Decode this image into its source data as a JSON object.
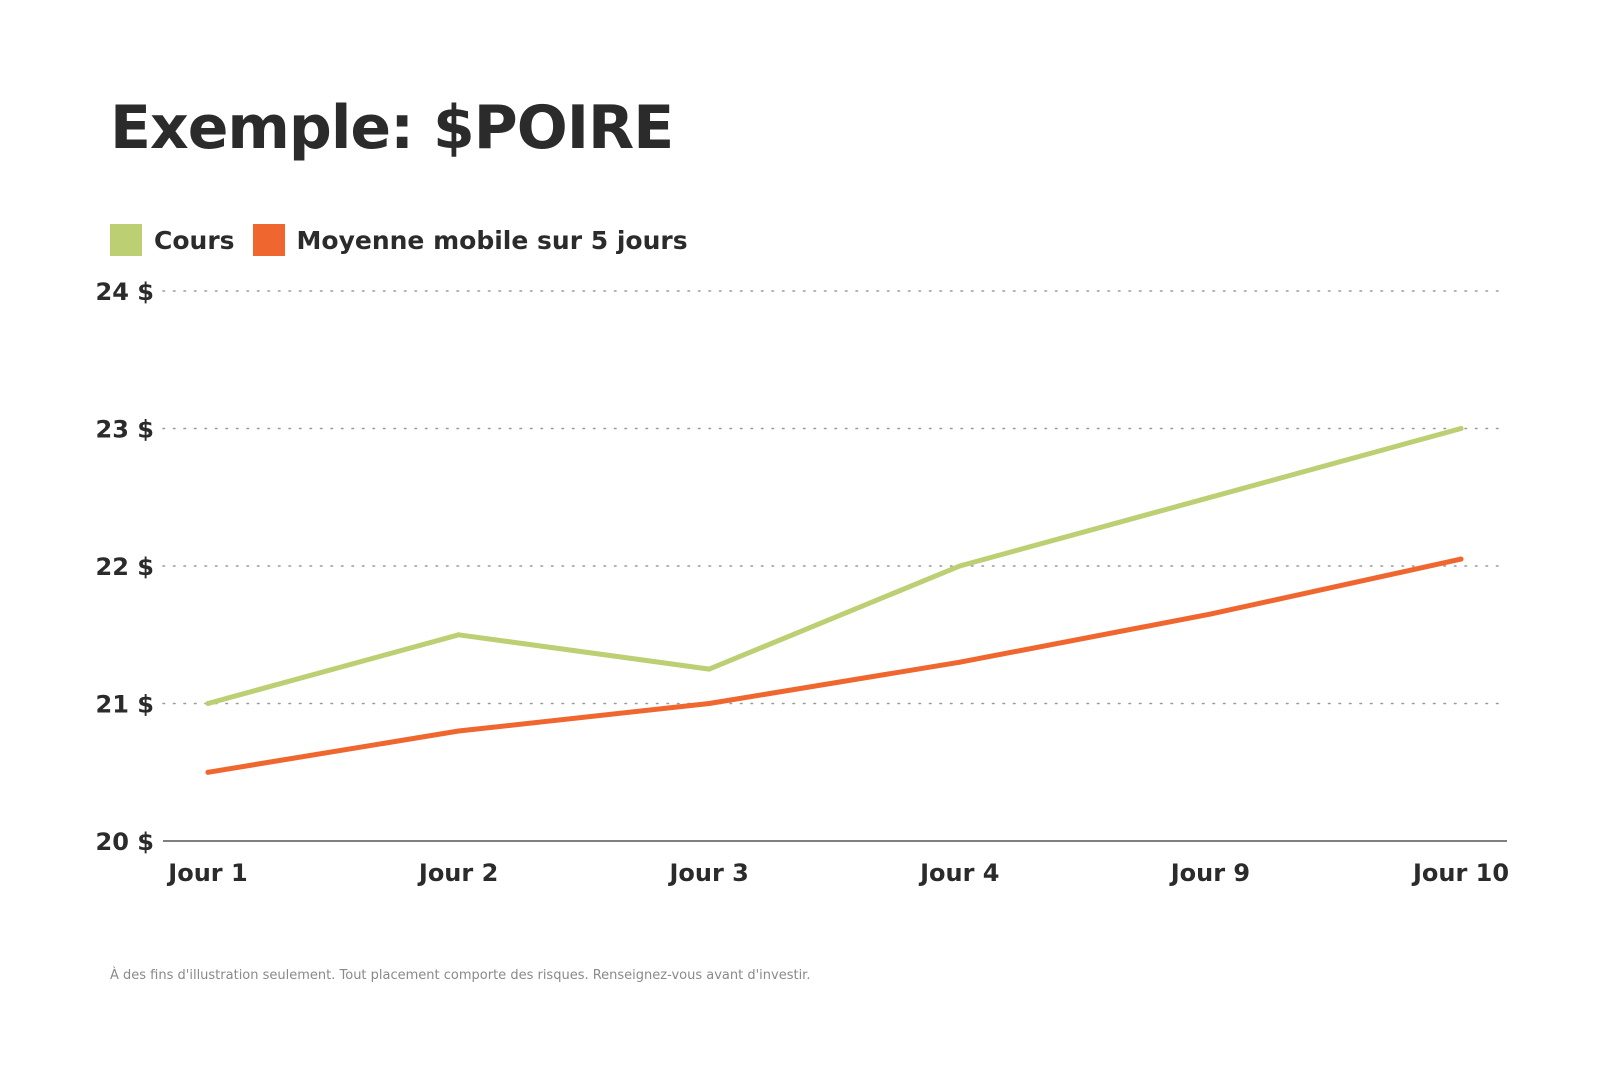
{
  "chart_data": {
    "type": "line",
    "title": "Exemple: $POIRE",
    "categories": [
      "Jour 1",
      "Jour 2",
      "Jour 3",
      "Jour 4",
      "Jour 9",
      "Jour 10"
    ],
    "series": [
      {
        "name": "Cours",
        "color": "#bccf72",
        "values": [
          21.0,
          21.5,
          21.25,
          22.0,
          22.5,
          23.0
        ]
      },
      {
        "name": "Moyenne mobile sur 5 jours",
        "color": "#f0662f",
        "values": [
          20.5,
          20.8,
          21.0,
          21.3,
          21.65,
          22.05
        ]
      }
    ],
    "yticks": [
      20,
      21,
      22,
      23,
      24
    ],
    "ytick_labels": [
      "20 $",
      "21 $",
      "22 $",
      "23 $",
      "24 $"
    ],
    "ylim": [
      20,
      24
    ],
    "xlabel": "",
    "ylabel": "",
    "grid": "horizontal dotted",
    "legend_position": "top-left"
  },
  "footnote": "À des fins d'illustration seulement. Tout placement comporte des risques. Renseignez-vous avant d'investir."
}
